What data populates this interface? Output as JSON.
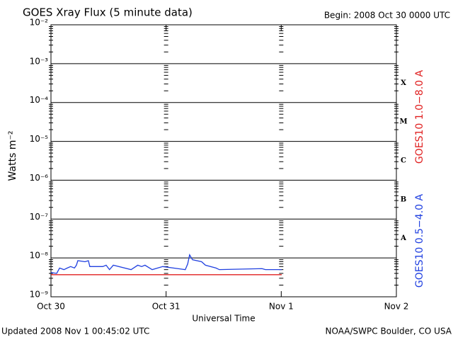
{
  "chart_data": {
    "type": "line",
    "title": "GOES Xray Flux (5 minute data)",
    "subtitle": "Begin:  2008 Oct 30 0000 UTC",
    "x_label": "Universal Time",
    "y_label": "Watts m⁻²",
    "footer_left": "Updated 2008 Nov  1 00:45:02 UTC",
    "footer_right": "NOAA/SWPC Boulder, CO USA",
    "flare_classes": [
      "X",
      "M",
      "C",
      "B",
      "A"
    ],
    "log_y": true,
    "grid": true,
    "xlim": [
      0,
      72
    ],
    "xticks": [
      {
        "value": 0,
        "label": "Oct 30"
      },
      {
        "value": 24,
        "label": "Oct 31"
      },
      {
        "value": 48,
        "label": "Nov 1"
      },
      {
        "value": 72,
        "label": "Nov 2"
      }
    ],
    "ylim": [
      1e-09,
      0.01
    ],
    "yticks": [
      {
        "value": 1e-09,
        "label": "10⁻⁹"
      },
      {
        "value": 1e-08,
        "label": "10⁻⁸"
      },
      {
        "value": 1e-07,
        "label": "10⁻⁷"
      },
      {
        "value": 1e-06,
        "label": "10⁻⁶"
      },
      {
        "value": 1e-05,
        "label": "10⁻⁵"
      },
      {
        "value": 0.0001,
        "label": "10⁻⁴"
      },
      {
        "value": 0.001,
        "label": "10⁻³"
      },
      {
        "value": 0.01,
        "label": "10⁻²"
      }
    ],
    "series": [
      {
        "name": "GOES10 1.0−8.0 A",
        "color": "#e02020",
        "x": [
          0,
          48.1
        ],
        "values": [
          3.7e-09,
          3.7e-09
        ]
      },
      {
        "name": "GOES10 0.5−4.0 A",
        "color": "#2040e0",
        "x": [
          0,
          1.2,
          1.8,
          2.7,
          3.4,
          4.1,
          4.9,
          5.3,
          5.6,
          7.1,
          7.8,
          8.1,
          10.8,
          11.5,
          12.2,
          13,
          16.7,
          18.1,
          18.9,
          19.6,
          21.1,
          23.3,
          28,
          28.5,
          28.9,
          29.5,
          31.4,
          32.2,
          34.4,
          35.1,
          44,
          44.7,
          48.1
        ],
        "values": [
          4.2e-09,
          4e-09,
          5.5e-09,
          5e-09,
          5.5e-09,
          6e-09,
          5.5e-09,
          6.5e-09,
          8.5e-09,
          8e-09,
          8.5e-09,
          6e-09,
          6e-09,
          6.5e-09,
          5e-09,
          6.5e-09,
          5e-09,
          6.5e-09,
          6e-09,
          6.5e-09,
          5e-09,
          6e-09,
          5e-09,
          7e-09,
          1.2e-08,
          9e-09,
          8e-09,
          6.5e-09,
          5.5e-09,
          5e-09,
          5.3e-09,
          5e-09,
          5e-09
        ]
      }
    ]
  }
}
